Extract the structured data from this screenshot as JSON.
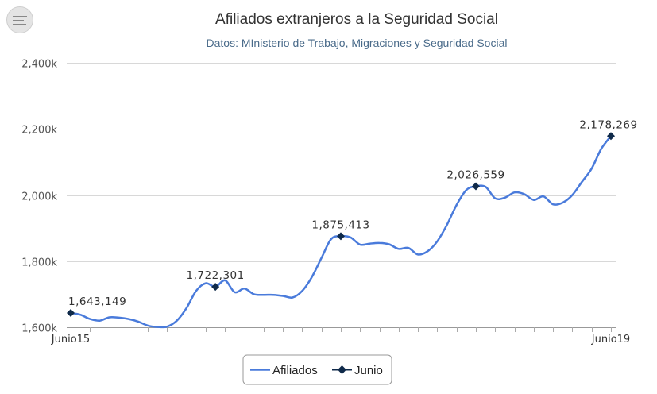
{
  "chart_data": {
    "type": "line",
    "title": "Afiliados extranjeros a la Seguridad Social",
    "subtitle": "Datos: MInisterio de Trabajo, Migraciones y Seguridad Social",
    "x_axis": {
      "labels_shown": [
        "Junio15",
        "Junio19"
      ],
      "start": "Junio15",
      "end": "Junio19",
      "frequency": "monthly"
    },
    "y_axis": {
      "min": 1600000,
      "max": 2400000,
      "tick_values": [
        1600000,
        1800000,
        2000000,
        2200000,
        2400000
      ],
      "tick_labels": [
        "1,600k",
        "1,800k",
        "2,000k",
        "2,200k",
        "2,400k"
      ],
      "grid": true
    },
    "colors": {
      "afiliados": "#4a7bdb",
      "junio": "#0f2a4a"
    },
    "series": [
      {
        "name": "Afiliados",
        "style": "smooth-line",
        "values": [
          1643149,
          1638000,
          1625000,
          1620000,
          1630000,
          1629000,
          1625000,
          1617000,
          1605000,
          1601000,
          1602000,
          1620000,
          1658000,
          1710000,
          1733000,
          1722301,
          1742000,
          1706000,
          1717000,
          1700000,
          1698000,
          1698000,
          1695000,
          1690000,
          1710000,
          1752000,
          1810000,
          1867000,
          1875413,
          1872000,
          1850000,
          1853000,
          1855000,
          1851000,
          1837000,
          1840000,
          1820000,
          1830000,
          1860000,
          1910000,
          1970000,
          2015000,
          2026559,
          2025000,
          1990000,
          1992000,
          2008000,
          2003000,
          1985000,
          1996000,
          1972000,
          1977000,
          2000000,
          2040000,
          2080000,
          2140000,
          2178269
        ]
      },
      {
        "name": "Junio",
        "style": "markers",
        "point_indices": [
          0,
          15,
          28,
          42,
          56
        ],
        "values": [
          1643149,
          1722301,
          1875413,
          2026559,
          2178269
        ],
        "labels": [
          "1,643,149",
          "1,722,301",
          "1,875,413",
          "2,026,559",
          "2,178,269"
        ]
      }
    ],
    "legend": {
      "placement": "bottom-center",
      "items": [
        "Afiliados",
        "Junio"
      ]
    }
  }
}
